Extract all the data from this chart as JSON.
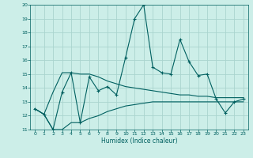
{
  "xlabel": "Humidex (Indice chaleur)",
  "x_values": [
    0,
    1,
    2,
    3,
    4,
    5,
    6,
    7,
    8,
    9,
    10,
    11,
    12,
    13,
    14,
    15,
    16,
    17,
    18,
    19,
    20,
    21,
    22,
    23
  ],
  "main_line": [
    12.5,
    12.1,
    11.0,
    13.7,
    15.1,
    11.5,
    14.8,
    13.8,
    14.1,
    13.5,
    16.2,
    19.0,
    20.0,
    15.5,
    15.1,
    15.0,
    17.5,
    15.9,
    14.9,
    15.0,
    13.2,
    12.2,
    13.0,
    13.2
  ],
  "upper_line": [
    12.5,
    12.1,
    13.7,
    15.1,
    15.1,
    15.0,
    15.0,
    14.8,
    14.5,
    14.3,
    14.1,
    14.0,
    13.9,
    13.8,
    13.7,
    13.6,
    13.5,
    13.5,
    13.4,
    13.4,
    13.3,
    13.3,
    13.3,
    13.3
  ],
  "lower_line": [
    12.5,
    12.1,
    11.0,
    11.0,
    11.5,
    11.5,
    11.8,
    12.0,
    12.3,
    12.5,
    12.7,
    12.8,
    12.9,
    13.0,
    13.0,
    13.0,
    13.0,
    13.0,
    13.0,
    13.0,
    13.0,
    13.0,
    13.0,
    13.0
  ],
  "line_color": "#006060",
  "bg_color": "#cceee8",
  "grid_color": "#aad4ce",
  "ylim": [
    11,
    20
  ],
  "xlim": [
    -0.5,
    23.5
  ]
}
